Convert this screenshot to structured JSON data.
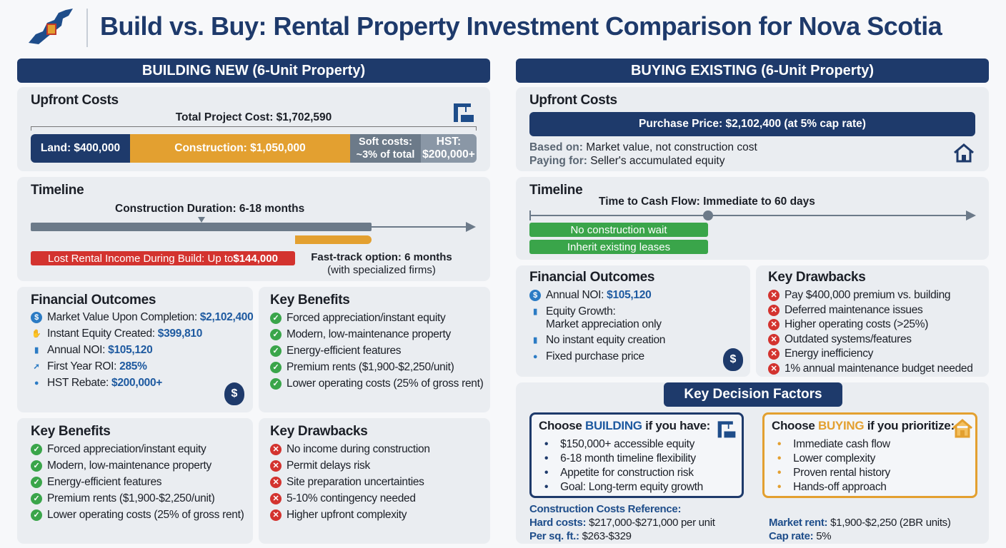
{
  "header": {
    "title": "Build vs. Buy: Rental Property Investment Comparison for Nova Scotia",
    "logo": "nova-scotia-map-icon"
  },
  "colors": {
    "navy": "#1e3a6b",
    "orange": "#e3a030",
    "gray": "#6c7a89",
    "red": "#d3332f",
    "green": "#3aa54a"
  },
  "build": {
    "banner": "BUILDING NEW (6-Unit Property)",
    "upfront": {
      "title": "Upfront Costs",
      "total": "Total Project Cost: $1,702,590",
      "segments": [
        {
          "label": "Land: $400,000",
          "value": 400000
        },
        {
          "label": "Construction: $1,050,000",
          "value": 1050000
        },
        {
          "label": "Soft costs: ~3% of total",
          "value": "~3%"
        },
        {
          "label": "HST: $200,000+",
          "value": 200000
        }
      ],
      "icon": "crane-icon"
    },
    "timeline": {
      "title": "Timeline",
      "duration": "Construction Duration: 6-18 months",
      "lost_prefix": "Lost Rental Income During Build: Up to ",
      "lost_value": "$144,000",
      "fast_track": "Fast-track option: 6 months",
      "fast_track_note": "(with specialized firms)"
    },
    "financial": {
      "title": "Financial Outcomes",
      "items": [
        {
          "label": "Market Value Upon Completion: ",
          "value": "$2,102,400",
          "icon": "dollar-icon"
        },
        {
          "label": "Instant Equity Created: ",
          "value": "$399,810",
          "icon": "hand-coin-icon"
        },
        {
          "label": "Annual NOI: ",
          "value": "$105,120",
          "icon": "bar-chart-icon"
        },
        {
          "label": "First Year ROI: ",
          "value": "285%",
          "icon": "trend-arrow-icon"
        },
        {
          "label": "HST Rebate: ",
          "value": "$200,000+",
          "icon": "money-bag-icon"
        }
      ]
    },
    "benefits_top": {
      "title": "Key Benefits",
      "items": [
        "Forced appreciation/instant equity",
        "Modern, low-maintenance property",
        "Energy-efficient features",
        "Premium rents ($1,900-$2,250/unit)",
        "Lower operating costs (25% of gross rent)"
      ]
    },
    "benefits": {
      "title": "Key Benefits",
      "items": [
        "Forced appreciation/instant equity",
        "Modern, low-maintenance property",
        "Energy-efficient features",
        "Premium rents ($1,900-$2,250/unit)",
        "Lower operating costs (25% of gross rent)"
      ]
    },
    "drawbacks": {
      "title": "Key Drawbacks",
      "items": [
        "No income during construction",
        "Permit delays risk",
        "Site preparation uncertainties",
        "5-10% contingency needed",
        "Higher upfront complexity"
      ]
    }
  },
  "buy": {
    "banner": "BUYING EXISTING (6-Unit Property)",
    "upfront": {
      "title": "Upfront Costs",
      "price": "Purchase Price: $2,102,400 (at 5% cap rate)",
      "based_label": "Based on:",
      "based_value": " Market value, not construction cost",
      "paying_label": "Paying for:",
      "paying_value": " Seller's accumulated equity",
      "icon": "house-icon"
    },
    "timeline": {
      "title": "Timeline",
      "cash_flow": "Time to Cash Flow: Immediate to 60 days",
      "tags": [
        "No construction wait",
        "Inherit existing leases"
      ]
    },
    "financial": {
      "title": "Financial Outcomes",
      "items": [
        {
          "label": "Annual NOI: ",
          "value": "$105,120",
          "icon": "dollar-icon"
        },
        {
          "label": "Equity Growth:",
          "value": "Market appreciation only",
          "icon": "bar-chart-icon"
        },
        {
          "label": "No instant equity creation",
          "value": "",
          "icon": "bar-chart-icon"
        },
        {
          "label": "Fixed purchase price",
          "value": "",
          "icon": "money-bag-icon"
        }
      ]
    },
    "drawbacks": {
      "title": "Key Drawbacks",
      "items": [
        "Pay $400,000 premium vs. building",
        "Deferred maintenance issues",
        "Higher operating costs (>25%)",
        "Outdated systems/features",
        "Energy inefficiency",
        "1% annual maintenance budget needed"
      ]
    }
  },
  "decision": {
    "title": "Key Decision Factors",
    "build": {
      "prefix": "Choose ",
      "keyword": "BUILDING",
      "suffix": " if you have:",
      "items": [
        "$150,000+ accessible equity",
        "6-18 month timeline flexibility",
        "Appetite for construction risk",
        "Goal: Long-term equity growth"
      ]
    },
    "buy": {
      "prefix": "Choose ",
      "keyword": "BUYING",
      "suffix": " if you prioritize:",
      "items": [
        "Immediate cash flow",
        "Lower complexity",
        "Proven rental history",
        "Hands-off approach"
      ]
    },
    "ref_title": "Construction Costs Reference:",
    "hard_label": "Hard costs:",
    "hard_value": " $217,000-$271,000 per unit",
    "sqft_label": "Per sq. ft.:",
    "sqft_value": " $263-$329",
    "rent_label": "Market rent:",
    "rent_value": " $1,900-$2,250 (2BR units)",
    "cap_label": "Cap rate:",
    "cap_value": " 5%"
  }
}
